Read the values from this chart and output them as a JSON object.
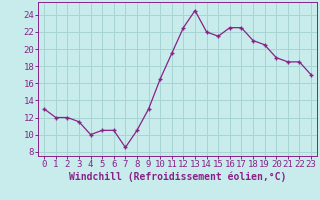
{
  "x_vals": [
    0,
    1,
    2,
    3,
    4,
    5,
    6,
    7,
    8,
    9,
    10,
    11,
    12,
    13,
    14,
    15,
    16,
    17,
    18,
    19,
    20,
    21,
    22,
    23
  ],
  "y_vals": [
    13,
    12,
    12,
    11.5,
    10,
    10.5,
    10.5,
    8.5,
    10.5,
    13,
    16.5,
    19.5,
    22.5,
    24.5,
    22,
    21.5,
    22.5,
    22.5,
    21,
    20.5,
    19,
    18.5,
    18.5,
    17
  ],
  "xlabel": "Windchill (Refroidissement éolien,°C)",
  "xlim": [
    -0.5,
    23.5
  ],
  "ylim": [
    7.5,
    25.5
  ],
  "yticks": [
    8,
    10,
    12,
    14,
    16,
    18,
    20,
    22,
    24
  ],
  "xticks": [
    0,
    1,
    2,
    3,
    4,
    5,
    6,
    7,
    8,
    9,
    10,
    11,
    12,
    13,
    14,
    15,
    16,
    17,
    18,
    19,
    20,
    21,
    22,
    23
  ],
  "line_color": "#882288",
  "bg_color": "#c8ecec",
  "grid_color": "#a8d4d4",
  "label_color": "#882288",
  "tick_fontsize": 6.5,
  "xlabel_fontsize": 7.0
}
